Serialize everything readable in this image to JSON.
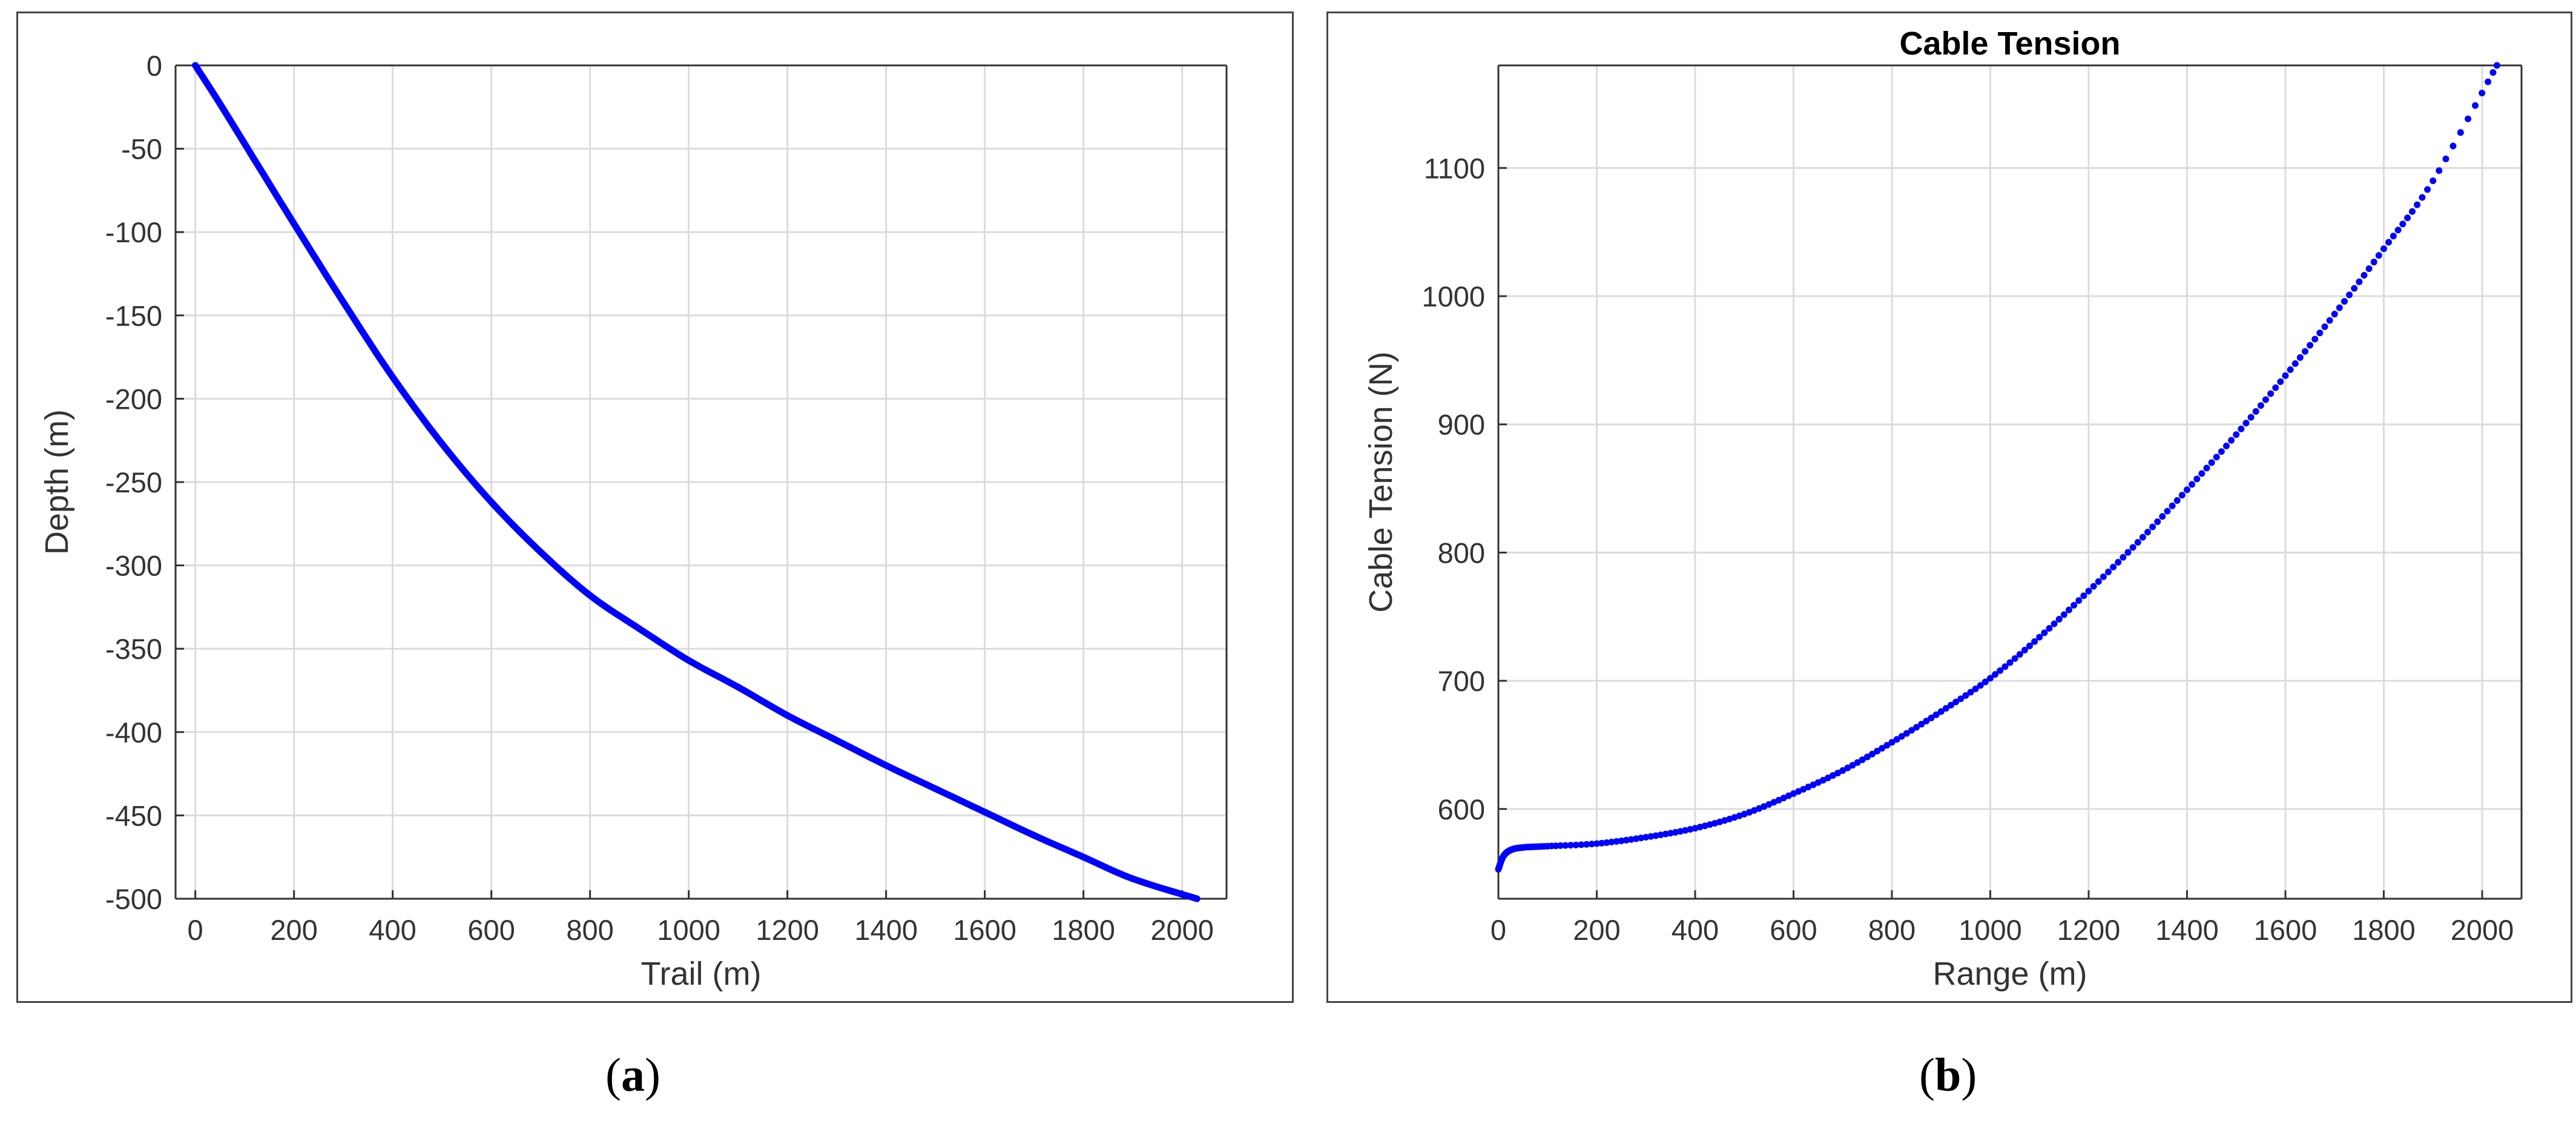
{
  "chart_data": [
    {
      "type": "line",
      "title": "",
      "xlabel": "Trail (m)",
      "ylabel": "Depth (m)",
      "xlim": [
        -40,
        2090
      ],
      "ylim": [
        -500,
        0
      ],
      "xticks": [
        "0",
        "200",
        "400",
        "600",
        "800",
        "1000",
        "1200",
        "1400",
        "1600",
        "1800",
        "2000"
      ],
      "yticks": [
        "0",
        "-50",
        "-100",
        "-150",
        "-200",
        "-250",
        "-300",
        "-350",
        "-400",
        "-450",
        "-500"
      ],
      "grid": true,
      "color": "#0000ff",
      "series": [
        {
          "x": [
            0,
            50,
            100,
            200,
            300,
            400,
            500,
            600,
            700,
            800,
            900,
            1000,
            1100,
            1200,
            1300,
            1400,
            1500,
            1600,
            1700,
            1800,
            1900,
            2030
          ],
          "y": [
            0,
            -23,
            -47,
            -95,
            -142,
            -187,
            -227,
            -262,
            -292,
            -318,
            -338,
            -357,
            -373,
            -390,
            -405,
            -420,
            -434,
            -448,
            -462,
            -475,
            -488,
            -500
          ]
        }
      ]
    },
    {
      "type": "line",
      "title": "Cable Tension",
      "xlabel": "Range (m)",
      "ylabel": "Cable Tension (N)",
      "xlim": [
        0,
        2080
      ],
      "ylim": [
        530,
        1180
      ],
      "xticks": [
        "0",
        "200",
        "400",
        "600",
        "800",
        "1000",
        "1200",
        "1400",
        "1600",
        "1800",
        "2000"
      ],
      "yticks": [
        "600",
        "700",
        "800",
        "900",
        "1000",
        "1100"
      ],
      "grid": true,
      "color": "#0000ff",
      "series": [
        {
          "x": [
            0,
            10,
            25,
            50,
            100,
            200,
            300,
            400,
            500,
            600,
            700,
            800,
            900,
            1000,
            1100,
            1200,
            1300,
            1400,
            1500,
            1600,
            1700,
            1800,
            1900,
            2030
          ],
          "y": [
            553,
            563,
            568,
            570,
            571,
            573,
            578,
            585,
            596,
            612,
            630,
            652,
            676,
            702,
            734,
            770,
            808,
            849,
            892,
            938,
            986,
            1037,
            1090,
            1180
          ]
        }
      ]
    }
  ],
  "captions": [
    {
      "open": "(",
      "letter": "a",
      "close": ")"
    },
    {
      "open": "(",
      "letter": "b",
      "close": ")"
    }
  ]
}
